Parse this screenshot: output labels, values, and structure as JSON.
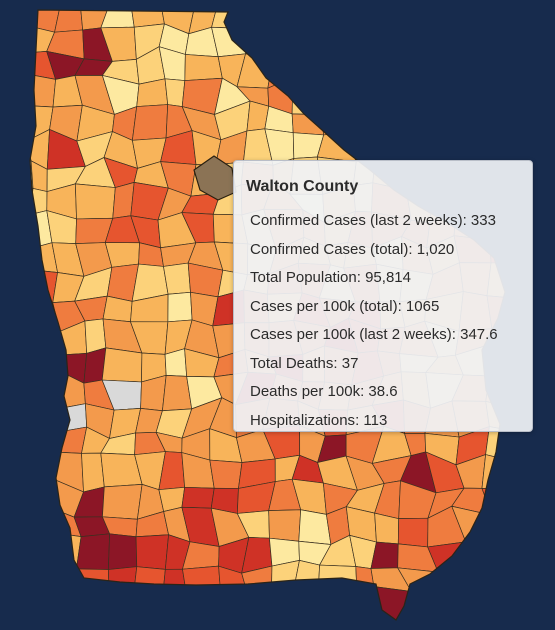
{
  "tooltip": {
    "county": "Walton County",
    "rows": [
      {
        "label": "Confirmed Cases (last 2 weeks)",
        "value": "333"
      },
      {
        "label": "Confirmed Cases (total)",
        "value": "1,020"
      },
      {
        "label": "Total Population",
        "value": "95,814"
      },
      {
        "label": "Cases per 100k (total)",
        "value": "1065"
      },
      {
        "label": "Cases per 100k (last 2 weeks)",
        "value": "347.6"
      },
      {
        "label": "Total Deaths",
        "value": "37"
      },
      {
        "label": "Deaths per 100k",
        "value": "38.6"
      },
      {
        "label": "Hospitalizations",
        "value": "113"
      }
    ]
  },
  "map": {
    "region": "Georgia counties",
    "highlighted_county": "Walton County",
    "colors": {
      "background": "#172b4d",
      "highlight": "#8b7355",
      "no_data": "#d9d9d9",
      "scale": [
        "#fde9a0",
        "#fcd27a",
        "#f8b45a",
        "#f39a4c",
        "#ef7c3f",
        "#e6552f",
        "#cf3226",
        "#8c1626"
      ]
    }
  }
}
